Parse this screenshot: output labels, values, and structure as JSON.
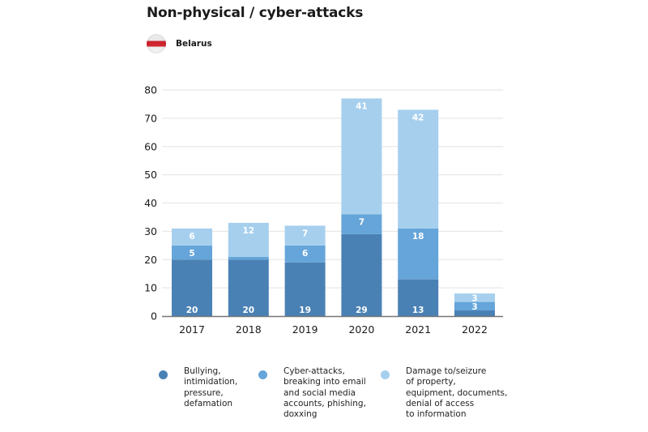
{
  "header": {
    "title": "Non-physical / cyber-attacks",
    "country": "Belarus",
    "flag_icon": "belarus-white-red-white-flag-icon"
  },
  "chart_data": {
    "type": "bar",
    "stacked": true,
    "title": "Non-physical / cyber-attacks",
    "subtitle": "Belarus",
    "xlabel": "",
    "ylabel": "",
    "categories": [
      "2017",
      "2018",
      "2019",
      "2020",
      "2021",
      "2022"
    ],
    "ylim": [
      0,
      80
    ],
    "yticks": [
      0,
      10,
      20,
      30,
      40,
      50,
      60,
      70,
      80
    ],
    "grid": true,
    "legend_position": "bottom",
    "series": [
      {
        "name": "Bullying, intimidation, pressure, defamation",
        "color": "#4a81b4",
        "values": [
          20,
          20,
          19,
          29,
          13,
          2
        ],
        "labels": [
          "20",
          "20",
          "19",
          "29",
          "13",
          ""
        ]
      },
      {
        "name": "Cyber-attacks, breaking into email and social media accounts, phishing, doxxing",
        "color": "#65a5d9",
        "values": [
          5,
          1,
          6,
          7,
          18,
          3
        ],
        "labels": [
          "5",
          "",
          "6",
          "7",
          "18",
          "3"
        ]
      },
      {
        "name": "Damage to/seizure of property, equipment, documents, denial of access to information",
        "color": "#a6cfee",
        "values": [
          6,
          12,
          7,
          41,
          42,
          3
        ],
        "labels": [
          "6",
          "12",
          "7",
          "41",
          "42",
          "3"
        ]
      }
    ]
  },
  "legend": [
    {
      "text": "Bullying,\nintimidation,\npressure,\ndefamation",
      "color": "#4a81b4"
    },
    {
      "text": "Cyber-attacks,\nbreaking into email\nand social media\naccounts, phishing,\ndoxxing",
      "color": "#65a5d9"
    },
    {
      "text": "Damage to/seizure\nof property,\nequipment, documents,\ndenial of access\nto information",
      "color": "#a6cfee"
    }
  ]
}
